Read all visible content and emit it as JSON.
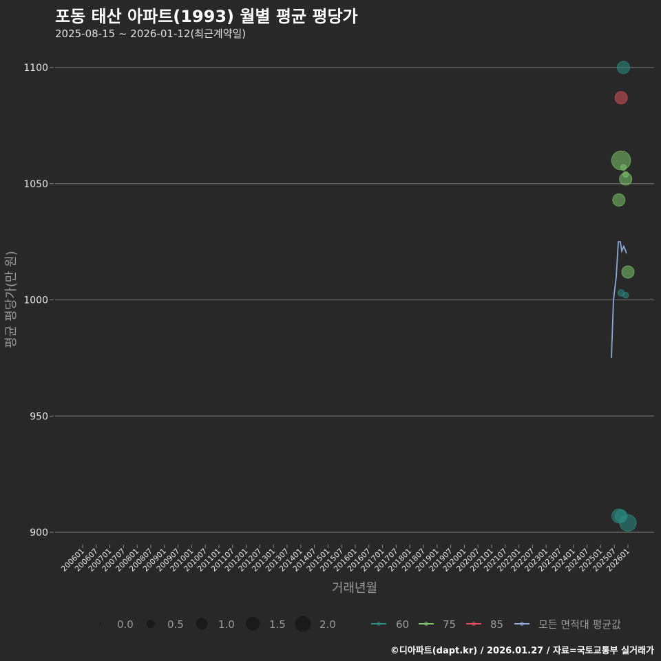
{
  "header": {
    "title": "포동 태산 아파트(1993) 월별 평균 평당가",
    "subtitle": "2025-08-15 ~ 2026-01-12(최근계약일)"
  },
  "footer": {
    "credit": "©디아파트(dapt.kr) / 2026.01.27 / 자료=국토교통부 실거래가"
  },
  "colors": {
    "background": "#282828",
    "grid": "#6a6a6a",
    "area_60": "#2a8c82",
    "area_75": "#7cc46a",
    "area_85": "#d9505a",
    "all_avg": "#8aa8d8"
  },
  "chart_data": {
    "type": "scatter",
    "title": "포동 태산 아파트(1993) 월별 평균 평당가",
    "subtitle": "2025-08-15 ~ 2026-01-12(최근계약일)",
    "xlabel": "거래년월",
    "ylabel": "평균 평당가(만 원)",
    "ylim": [
      893,
      1103
    ],
    "yticks": [
      900,
      950,
      1000,
      1050,
      1100
    ],
    "xticks": [
      "200601",
      "200607",
      "200701",
      "200707",
      "200801",
      "200807",
      "200901",
      "200907",
      "201001",
      "201007",
      "201101",
      "201107",
      "201201",
      "201207",
      "201301",
      "201307",
      "201401",
      "201407",
      "201501",
      "201507",
      "201601",
      "201607",
      "201701",
      "201707",
      "201801",
      "201807",
      "201901",
      "201907",
      "202001",
      "202007",
      "202101",
      "202107",
      "202201",
      "202207",
      "202301",
      "202307",
      "202401",
      "202407",
      "202501",
      "202507",
      "202601"
    ],
    "grid": true,
    "legend_position": "bottom",
    "size_legend": {
      "title": "",
      "values": [
        "0.0",
        "0.5",
        "1.0",
        "1.5",
        "2.0"
      ]
    },
    "color_legend": [
      {
        "label": "60",
        "color": "#2a8c82"
      },
      {
        "label": "75",
        "color": "#7cc46a"
      },
      {
        "label": "85",
        "color": "#d9505a"
      },
      {
        "label": "모든 면적대 평균값",
        "color": "#8aa8d8"
      }
    ],
    "series": [
      {
        "name": "60",
        "points": [
          {
            "x": "202511",
            "y": 1100,
            "size": 1.0
          },
          {
            "x": "202509",
            "y": 907,
            "size": 1.2
          },
          {
            "x": "202510",
            "y": 907,
            "size": 1.0
          },
          {
            "x": "202601",
            "y": 904,
            "size": 1.5
          },
          {
            "x": "202510",
            "y": 1003,
            "size": 0.3
          },
          {
            "x": "202512",
            "y": 1002,
            "size": 0.2
          }
        ]
      },
      {
        "name": "75",
        "points": [
          {
            "x": "202510",
            "y": 1060,
            "size": 1.8
          },
          {
            "x": "202511",
            "y": 1057,
            "size": 0.2
          },
          {
            "x": "202512",
            "y": 1054,
            "size": 0.2
          },
          {
            "x": "202512",
            "y": 1052,
            "size": 1.0
          },
          {
            "x": "202509",
            "y": 1043,
            "size": 1.0
          },
          {
            "x": "202601",
            "y": 1012,
            "size": 1.0
          }
        ]
      },
      {
        "name": "85",
        "points": [
          {
            "x": "202510",
            "y": 1087,
            "size": 1.0
          }
        ]
      },
      {
        "name": "모든 면적대 평균값",
        "type": "line",
        "points": [
          {
            "x": "202507",
            "y": 975
          },
          {
            "x": "202508",
            "y": 1000
          },
          {
            "x": "202509",
            "y": 1010
          },
          {
            "x": "202510",
            "y": 1025
          },
          {
            "x": "202511",
            "y": 1025
          },
          {
            "x": "202511",
            "y": 1021
          },
          {
            "x": "202512",
            "y": 1023
          },
          {
            "x": "202601",
            "y": 1020
          }
        ]
      }
    ]
  }
}
